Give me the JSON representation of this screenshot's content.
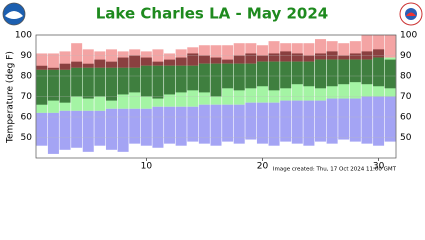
{
  "chart_data": {
    "type": "floating-bar",
    "title": "Lake Charles LA - May 2024",
    "y_label": "Temperature (deg F)",
    "footer": "Image created: Thu, 17 Oct 2024 11:00 GMT",
    "categories": [
      null,
      null,
      null,
      null,
      null,
      null,
      null,
      null,
      null,
      10,
      null,
      null,
      null,
      null,
      null,
      null,
      null,
      null,
      null,
      20,
      null,
      null,
      null,
      null,
      null,
      null,
      null,
      null,
      null,
      30,
      null
    ],
    "record_high": [
      91,
      91,
      92,
      96,
      93,
      92,
      93,
      92,
      93,
      92,
      93,
      91,
      93,
      94,
      95,
      95,
      95,
      96,
      96,
      95,
      97,
      96,
      96,
      96,
      98,
      97,
      96,
      97,
      100,
      100,
      100
    ],
    "normal_high": [
      83,
      83,
      83,
      84,
      84,
      84,
      84,
      84,
      84,
      85,
      85,
      85,
      85,
      85,
      86,
      86,
      86,
      86,
      86,
      87,
      87,
      87,
      87,
      87,
      88,
      88,
      88,
      88,
      88,
      89,
      89
    ],
    "normal_low": [
      62,
      62,
      63,
      63,
      63,
      63,
      64,
      64,
      64,
      64,
      65,
      65,
      65,
      65,
      66,
      66,
      66,
      66,
      67,
      67,
      67,
      68,
      68,
      68,
      68,
      69,
      69,
      69,
      70,
      70,
      70
    ],
    "record_low": [
      46,
      42,
      44,
      45,
      43,
      46,
      44,
      43,
      47,
      46,
      45,
      47,
      46,
      48,
      47,
      46,
      48,
      47,
      49,
      47,
      46,
      48,
      47,
      46,
      48,
      47,
      49,
      48,
      47,
      46,
      48
    ],
    "observed_high": [
      85,
      84,
      86,
      87,
      86,
      88,
      87,
      89,
      90,
      89,
      87,
      88,
      89,
      91,
      90,
      89,
      88,
      90,
      91,
      90,
      91,
      92,
      91,
      90,
      91,
      92,
      90,
      91,
      92,
      93,
      88
    ],
    "observed_low": [
      66,
      68,
      67,
      70,
      69,
      70,
      68,
      71,
      72,
      70,
      69,
      71,
      72,
      73,
      72,
      70,
      74,
      73,
      74,
      75,
      73,
      74,
      76,
      75,
      74,
      75,
      76,
      77,
      76,
      75,
      74
    ],
    "colors": {
      "record_high": "#f4a4a4",
      "normal": "#a4f4a4",
      "record_low": "#a4a4f4",
      "observed_above": "#8a4040",
      "observed_normal": "#3f7f3f",
      "observed_below": "#40408a"
    },
    "ylim": [
      40,
      100
    ],
    "yticks": [
      50,
      60,
      70,
      80,
      90,
      100
    ],
    "grid": true
  }
}
